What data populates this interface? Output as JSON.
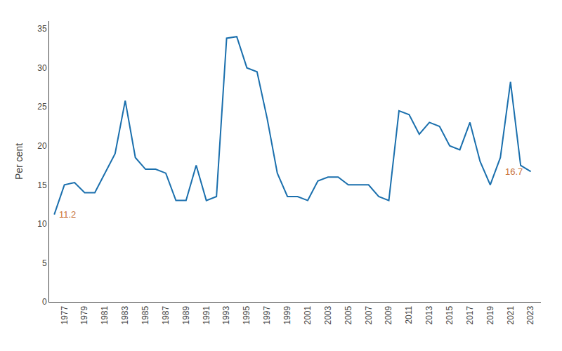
{
  "chart_data": {
    "type": "line",
    "x": [
      1976,
      1977,
      1978,
      1979,
      1980,
      1981,
      1982,
      1983,
      1984,
      1985,
      1986,
      1987,
      1988,
      1989,
      1990,
      1991,
      1992,
      1993,
      1994,
      1995,
      1996,
      1997,
      1998,
      1999,
      2000,
      2001,
      2002,
      2003,
      2004,
      2005,
      2006,
      2007,
      2008,
      2009,
      2010,
      2011,
      2012,
      2013,
      2014,
      2015,
      2016,
      2017,
      2018,
      2019,
      2020,
      2021,
      2022,
      2023
    ],
    "values": [
      11.2,
      15.0,
      15.3,
      14.0,
      14.0,
      16.5,
      19.0,
      25.8,
      18.5,
      17.0,
      17.0,
      16.5,
      13.0,
      13.0,
      17.5,
      13.0,
      13.5,
      33.8,
      34.0,
      30.0,
      29.5,
      23.5,
      16.5,
      13.5,
      13.5,
      13.0,
      15.5,
      16.0,
      16.0,
      15.0,
      15.0,
      15.0,
      13.5,
      13.0,
      24.5,
      24.0,
      21.5,
      23.0,
      22.5,
      20.0,
      19.5,
      23.0,
      18.0,
      15.0,
      18.5,
      28.2,
      17.5,
      16.7
    ],
    "color": "#1a6fad",
    "ylabel": "Per cent",
    "ylim": [
      0,
      36
    ],
    "yticks": [
      0,
      5,
      10,
      15,
      20,
      25,
      30,
      35
    ],
    "xlim": [
      1975.5,
      2024
    ],
    "xticks": [
      1977,
      1979,
      1981,
      1983,
      1985,
      1987,
      1989,
      1991,
      1993,
      1995,
      1997,
      1999,
      2001,
      2003,
      2005,
      2007,
      2009,
      2011,
      2013,
      2015,
      2017,
      2019,
      2021,
      2023
    ],
    "grid": false,
    "annotations": [
      {
        "text": "11.2",
        "x": 1976.3,
        "y": 11.2,
        "color": "#c87137"
      },
      {
        "text": "16.7",
        "x": 2020.3,
        "y": 16.7,
        "color": "#c87137"
      }
    ]
  }
}
